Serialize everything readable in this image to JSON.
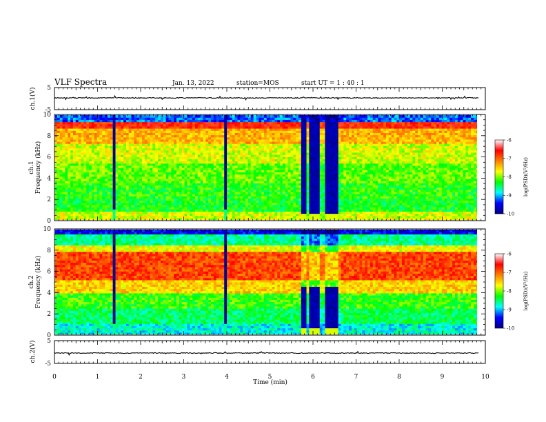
{
  "header": {
    "title": "VLF Spectra",
    "date": "Jan. 13, 2022",
    "station": "station=MOS",
    "start": "start  UT =   1 : 40 : 1"
  },
  "chart_data": {
    "type": "heatmap",
    "xlabel": "Time  (min)",
    "xlim": [
      0,
      10
    ],
    "x_ticks": [
      "0",
      "1",
      "2",
      "3",
      "4",
      "5",
      "6",
      "7",
      "8",
      "9",
      "10"
    ],
    "data_end_min": 9.85,
    "panels": {
      "ch1_voltage": {
        "ylabel": "ch.1(V)",
        "ylim": [
          -5,
          5
        ],
        "y_ticks": [
          "5",
          "-5"
        ]
      },
      "ch1_spectrum": {
        "ylabel": "ch.1\nFrequency  (kHz)",
        "ylim": [
          0,
          10
        ],
        "y_ticks": [
          "0",
          "2",
          "4",
          "6",
          "8",
          "10"
        ]
      },
      "ch2_spectrum": {
        "ylabel": "ch.2\nFrequency  (kHz)",
        "ylim": [
          0,
          10
        ],
        "y_ticks": [
          "0",
          "2",
          "4",
          "6",
          "8",
          "10"
        ]
      },
      "ch2_voltage": {
        "ylabel": "ch.2(V)",
        "ylim": [
          -5,
          5
        ],
        "y_ticks": [
          "5",
          "-5"
        ]
      }
    },
    "colorbar": {
      "label": "log(PSD)(V²/Hz)",
      "range": [
        -10,
        -6
      ],
      "ticks": [
        "-6",
        "-7",
        "-8",
        "-9",
        "-10"
      ],
      "colors": [
        "#000080",
        "#0000ff",
        "#00ffff",
        "#00ff00",
        "#ffff00",
        "#ff8000",
        "#ff0000",
        "#ffffff"
      ]
    },
    "events": [
      {
        "t_min": 1.37,
        "t_max": 1.43,
        "kind": "dark-band"
      },
      {
        "t_min": 3.95,
        "t_max": 4.02,
        "kind": "dark-band"
      },
      {
        "t_min": 5.72,
        "t_max": 6.65,
        "kind": "quiet-interval"
      }
    ]
  }
}
